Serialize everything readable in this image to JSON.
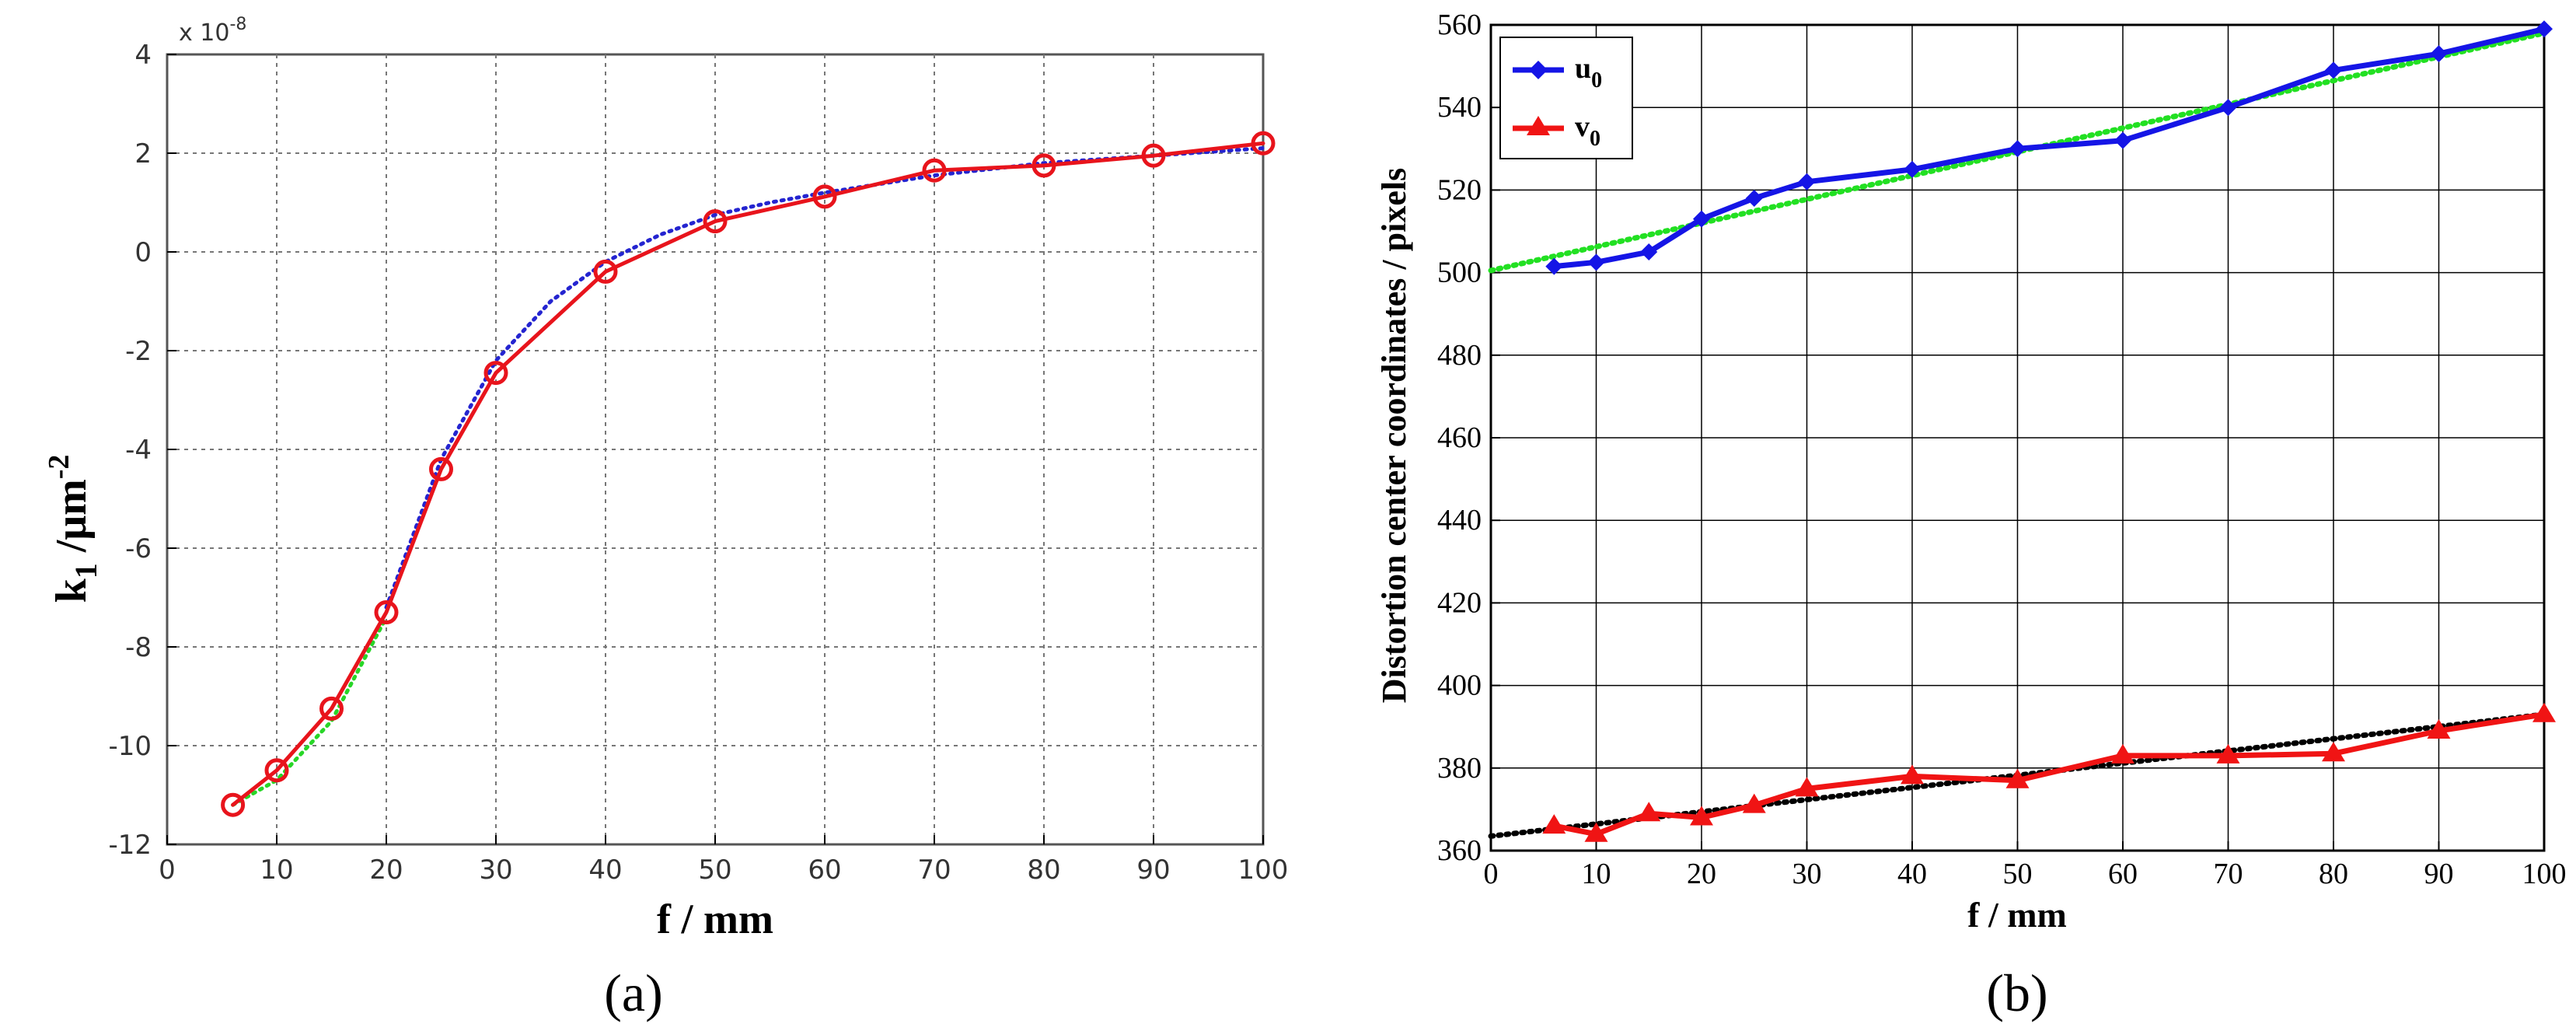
{
  "chart_data": [
    {
      "panel": "(a)",
      "type": "line",
      "xlabel": "f / mm",
      "ylabel_main": "k",
      "ylabel_sub": "1",
      "ylabel_unit": " /μm",
      "ylabel_sup": "-2",
      "scale_base": "x 10",
      "scale_exp": "-8",
      "xlim": [
        0,
        100
      ],
      "ylim": [
        -12,
        4
      ],
      "xticks": [
        0,
        10,
        20,
        30,
        40,
        50,
        60,
        70,
        80,
        90,
        100
      ],
      "yticks": [
        -12,
        -10,
        -8,
        -6,
        -4,
        -2,
        0,
        2,
        4
      ],
      "grid": "dotted",
      "legend": "none",
      "series": [
        {
          "color": "#e8141c",
          "style": "solid",
          "marker": "circle",
          "x": [
            6,
            10,
            15,
            20,
            25,
            30,
            40,
            50,
            60,
            70,
            80,
            90,
            100
          ],
          "y": [
            -11.2,
            -10.5,
            -9.25,
            -7.3,
            -4.4,
            -2.45,
            -0.4,
            0.62,
            1.12,
            1.65,
            1.75,
            1.95,
            2.2
          ]
        },
        {
          "color": "#2424d0",
          "style": "dotted",
          "marker": "none",
          "x": [
            20,
            25,
            30,
            35,
            40,
            45,
            50,
            55,
            60,
            70,
            80,
            90,
            100
          ],
          "y": [
            -7.2,
            -4.2,
            -2.2,
            -1.0,
            -0.2,
            0.35,
            0.75,
            1.0,
            1.2,
            1.55,
            1.8,
            1.95,
            2.1
          ]
        },
        {
          "color": "#27d627",
          "style": "dotted",
          "marker": "none",
          "x": [
            6,
            10,
            15,
            20
          ],
          "y": [
            -11.2,
            -10.7,
            -9.5,
            -7.4
          ]
        }
      ]
    },
    {
      "panel": "(b)",
      "type": "line",
      "xlabel": "f / mm",
      "ylabel": "Distortion center coordinates / pixels",
      "xlim": [
        0,
        100
      ],
      "ylim": [
        360,
        560
      ],
      "xticks": [
        0,
        10,
        20,
        30,
        40,
        50,
        60,
        70,
        80,
        90,
        100
      ],
      "yticks": [
        360,
        380,
        400,
        420,
        440,
        460,
        480,
        500,
        520,
        540,
        560
      ],
      "grid": "solid",
      "legend": "top-left",
      "series": [
        {
          "name": "u",
          "name_sub": "0",
          "color": "#1515e6",
          "style": "solid",
          "marker": "diamond",
          "x": [
            6,
            10,
            15,
            20,
            25,
            30,
            40,
            50,
            60,
            70,
            80,
            90,
            100
          ],
          "y": [
            501.5,
            502.5,
            505,
            513,
            518,
            522,
            525,
            530,
            532,
            540,
            549,
            553,
            559
          ]
        },
        {
          "name": "v",
          "name_sub": "0",
          "color": "#f01414",
          "style": "solid",
          "marker": "triangle",
          "x": [
            6,
            10,
            15,
            20,
            25,
            30,
            40,
            50,
            60,
            70,
            80,
            90,
            100
          ],
          "y": [
            366,
            364,
            369,
            368,
            371,
            375,
            378,
            377,
            383,
            383,
            383.5,
            389,
            393
          ]
        },
        {
          "color": "#22e022",
          "style": "dotted",
          "marker": "none",
          "x": [
            0,
            100
          ],
          "y": [
            500.5,
            558
          ]
        },
        {
          "color": "#000000",
          "style": "dotted",
          "marker": "none",
          "x": [
            0,
            100
          ],
          "y": [
            363.5,
            393
          ]
        }
      ]
    }
  ]
}
